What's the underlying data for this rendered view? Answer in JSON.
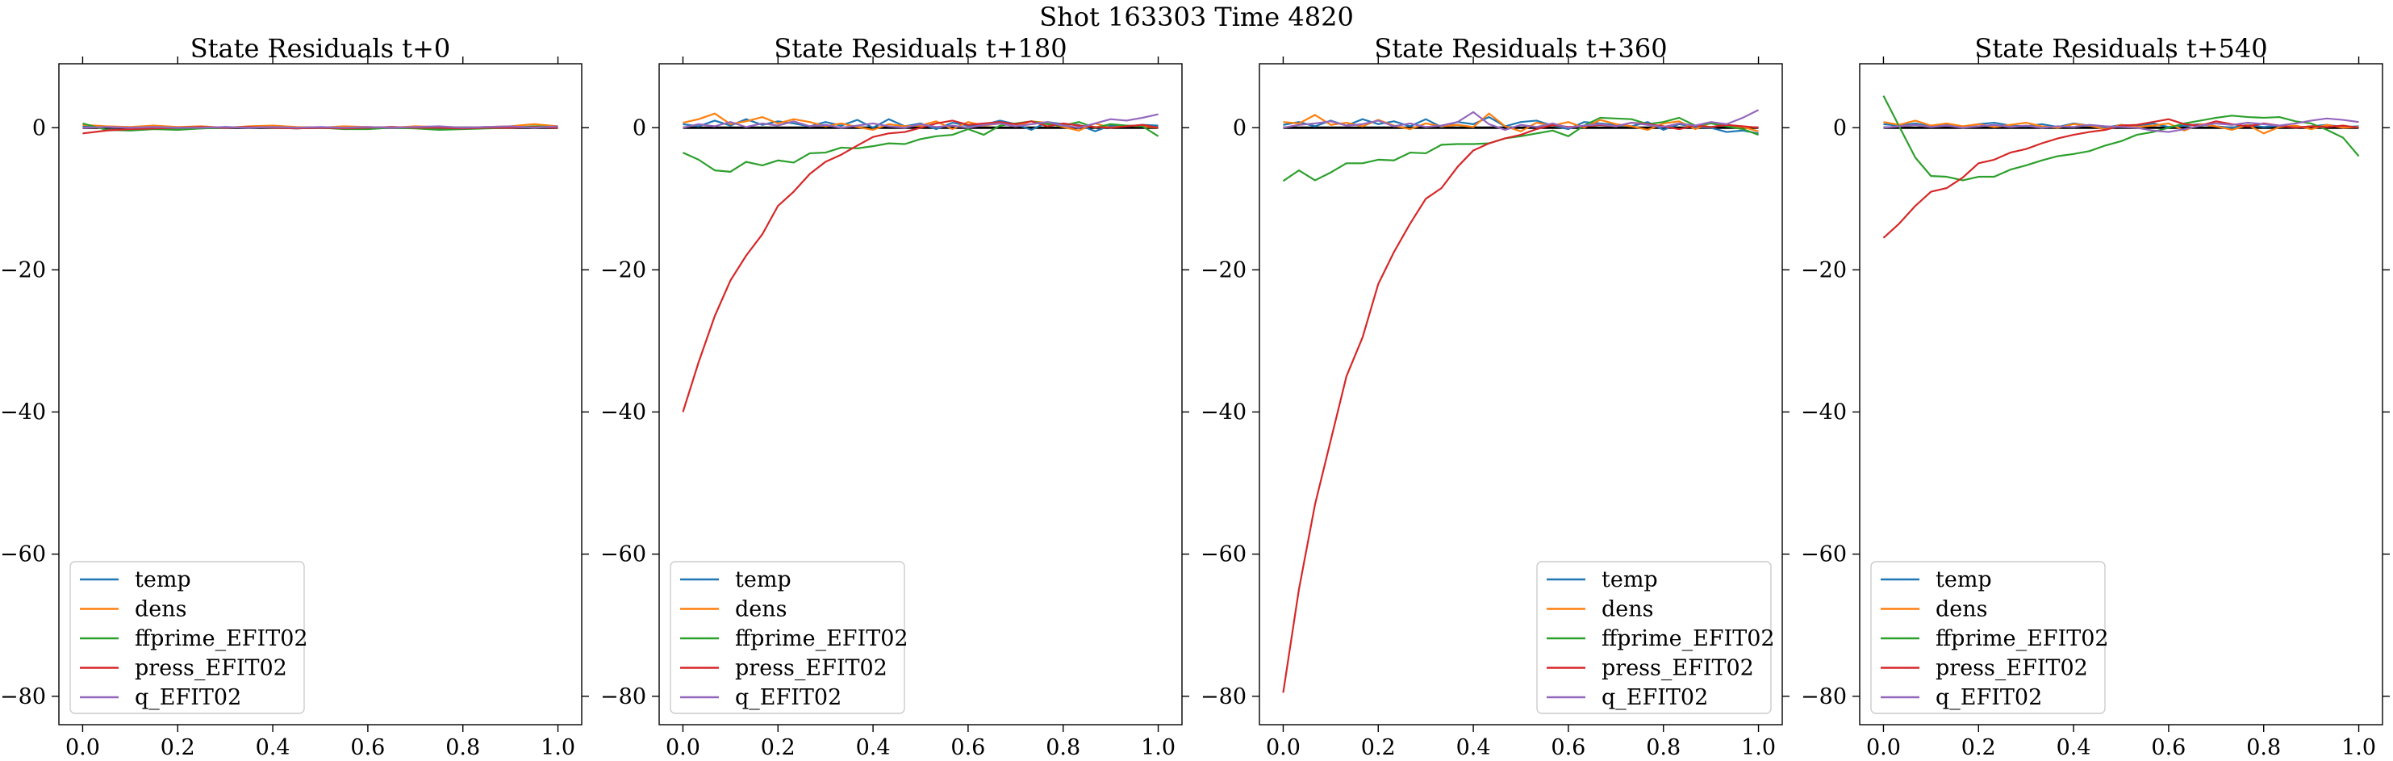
{
  "suptitle": "Shot 163303   Time 4820",
  "series_colors": {
    "temp": "#1f77b4",
    "dens": "#ff7f0e",
    "ffprime_EFIT02": "#2ca02c",
    "press_EFIT02": "#d62728",
    "q_EFIT02": "#9467bd"
  },
  "chart_data": [
    {
      "type": "line",
      "title": "State Residuals t+0",
      "xlim": [
        -0.05,
        1.05
      ],
      "ylim": [
        -84,
        9
      ],
      "x_ticks": [
        0.0,
        0.2,
        0.4,
        0.6,
        0.8,
        1.0
      ],
      "x_tick_labels": [
        "0.0",
        "0.2",
        "0.4",
        "0.6",
        "0.8",
        "1.0"
      ],
      "y_ticks": [
        -80,
        -60,
        -40,
        -20,
        0
      ],
      "y_tick_labels": [
        "−80",
        "−60",
        "−40",
        "−20",
        "0"
      ],
      "legend_loc": "lower-left",
      "x": [
        0.0,
        0.05,
        0.1,
        0.15,
        0.2,
        0.25,
        0.3,
        0.35,
        0.4,
        0.45,
        0.5,
        0.55,
        0.6,
        0.65,
        0.7,
        0.75,
        0.8,
        0.85,
        0.9,
        0.95,
        1.0
      ],
      "series": [
        {
          "name": "temp",
          "values": [
            0.2,
            0.1,
            0.0,
            0.1,
            0.0,
            -0.1,
            0.1,
            0.0,
            0.1,
            0.0,
            0.0,
            -0.1,
            0.0,
            0.1,
            0.0,
            -0.1,
            0.0,
            0.1,
            0.0,
            0.1,
            0.1
          ]
        },
        {
          "name": "dens",
          "values": [
            0.4,
            0.2,
            0.1,
            0.3,
            0.1,
            0.2,
            0.0,
            0.2,
            0.3,
            0.1,
            0.0,
            0.2,
            0.1,
            0.0,
            0.2,
            0.1,
            0.0,
            0.1,
            0.2,
            0.5,
            0.2
          ]
        },
        {
          "name": "ffprime_EFIT02",
          "values": [
            0.6,
            -0.3,
            -0.4,
            -0.2,
            -0.3,
            -0.1,
            0.0,
            0.1,
            0.0,
            -0.1,
            0.0,
            -0.2,
            -0.2,
            0.0,
            -0.1,
            -0.3,
            -0.2,
            -0.1,
            0.0,
            0.2,
            0.1
          ]
        },
        {
          "name": "press_EFIT02",
          "values": [
            -0.8,
            -0.4,
            -0.2,
            -0.1,
            0.0,
            0.1,
            0.0,
            0.1,
            0.0,
            -0.1,
            0.0,
            -0.1,
            0.0,
            0.1,
            0.0,
            0.0,
            -0.1,
            0.0,
            0.0,
            0.1,
            0.0
          ]
        },
        {
          "name": "q_EFIT02",
          "values": [
            0.0,
            0.1,
            0.0,
            0.1,
            0.0,
            0.0,
            0.1,
            0.0,
            0.1,
            0.0,
            0.1,
            0.0,
            0.1,
            0.0,
            0.1,
            0.2,
            0.0,
            0.1,
            0.2,
            0.0,
            0.2
          ]
        }
      ]
    },
    {
      "type": "line",
      "title": "State Residuals t+180",
      "xlim": [
        -0.05,
        1.05
      ],
      "ylim": [
        -84,
        9
      ],
      "x_ticks": [
        0.0,
        0.2,
        0.4,
        0.6,
        0.8,
        1.0
      ],
      "x_tick_labels": [
        "0.0",
        "0.2",
        "0.4",
        "0.6",
        "0.8",
        "1.0"
      ],
      "y_ticks": [
        -80,
        -60,
        -40,
        -20,
        0
      ],
      "y_tick_labels": [
        "−80",
        "−60",
        "−40",
        "−20",
        "0"
      ],
      "legend_loc": "lower-left",
      "x": [
        0.0,
        0.033,
        0.067,
        0.1,
        0.133,
        0.167,
        0.2,
        0.233,
        0.267,
        0.3,
        0.333,
        0.367,
        0.4,
        0.433,
        0.467,
        0.5,
        0.533,
        0.567,
        0.6,
        0.633,
        0.667,
        0.7,
        0.733,
        0.767,
        0.8,
        0.833,
        0.867,
        0.9,
        0.933,
        0.967,
        1.0
      ],
      "series": [
        {
          "name": "temp",
          "values": [
            0.5,
            0.2,
            1.0,
            0.3,
            1.2,
            0.4,
            0.9,
            0.6,
            0.2,
            0.8,
            0.3,
            1.1,
            0.0,
            1.2,
            0.2,
            0.6,
            -0.2,
            0.7,
            0.3,
            0.4,
            1.0,
            0.5,
            -0.3,
            0.8,
            0.5,
            0.4,
            -0.5,
            0.3,
            0.2,
            0.4,
            0.3
          ]
        },
        {
          "name": "dens",
          "values": [
            0.7,
            1.2,
            2.0,
            0.5,
            0.9,
            1.5,
            0.6,
            1.2,
            0.8,
            0.2,
            0.6,
            0.1,
            -0.3,
            0.5,
            0.2,
            0.3,
            0.9,
            -0.2,
            0.8,
            0.3,
            0.6,
            0.2,
            0.9,
            0.7,
            0.1,
            -0.4,
            0.6,
            0.0,
            0.3,
            0.2,
            0.0
          ]
        },
        {
          "name": "ffprime_EFIT02",
          "values": [
            -3.5,
            -4.5,
            -6.0,
            -6.2,
            -4.8,
            -5.3,
            -4.6,
            -4.9,
            -3.6,
            -3.5,
            -2.8,
            -2.9,
            -2.6,
            -2.2,
            -2.3,
            -1.6,
            -1.2,
            -1.0,
            -0.2,
            -1.0,
            0.3,
            0.6,
            0.9,
            0.5,
            0.3,
            0.8,
            0.0,
            0.5,
            0.3,
            0.2,
            -1.2
          ]
        },
        {
          "name": "press_EFIT02",
          "values": [
            -40.0,
            -33.0,
            -26.5,
            -21.5,
            -18.0,
            -15.0,
            -11.0,
            -9.0,
            -6.5,
            -4.8,
            -3.8,
            -2.5,
            -1.3,
            -0.8,
            -0.6,
            0.0,
            0.6,
            1.0,
            0.4,
            0.6,
            0.8,
            0.5,
            0.9,
            0.2,
            0.6,
            0.3,
            0.1,
            0.0,
            0.2,
            0.4,
            0.0
          ]
        },
        {
          "name": "q_EFIT02",
          "values": [
            0.0,
            0.5,
            0.2,
            0.8,
            0.1,
            0.6,
            0.3,
            0.9,
            0.2,
            0.4,
            0.0,
            0.3,
            0.6,
            0.2,
            0.0,
            0.5,
            0.1,
            0.3,
            0.0,
            0.4,
            0.6,
            0.2,
            0.5,
            0.8,
            0.3,
            0.0,
            0.6,
            1.2,
            1.0,
            1.4,
            1.9
          ]
        }
      ]
    },
    {
      "type": "line",
      "title": "State Residuals t+360",
      "xlim": [
        -0.05,
        1.05
      ],
      "ylim": [
        -84,
        9
      ],
      "x_ticks": [
        0.0,
        0.2,
        0.4,
        0.6,
        0.8,
        1.0
      ],
      "x_tick_labels": [
        "0.0",
        "0.2",
        "0.4",
        "0.6",
        "0.8",
        "1.0"
      ],
      "y_ticks": [
        -80,
        -60,
        -40,
        -20,
        0
      ],
      "y_tick_labels": [
        "−80",
        "−60",
        "−40",
        "−20",
        "0"
      ],
      "legend_loc": "lower-right",
      "x": [
        0.0,
        0.033,
        0.067,
        0.1,
        0.133,
        0.167,
        0.2,
        0.233,
        0.267,
        0.3,
        0.333,
        0.367,
        0.4,
        0.433,
        0.467,
        0.5,
        0.533,
        0.567,
        0.6,
        0.633,
        0.667,
        0.7,
        0.733,
        0.767,
        0.8,
        0.833,
        0.867,
        0.9,
        0.933,
        0.967,
        1.0
      ],
      "series": [
        {
          "name": "temp",
          "values": [
            0.4,
            0.8,
            0.2,
            1.0,
            0.3,
            1.2,
            0.5,
            0.9,
            0.2,
            1.2,
            0.1,
            0.8,
            0.5,
            1.5,
            0.2,
            0.8,
            1.0,
            0.3,
            -0.2,
            0.8,
            0.6,
            0.4,
            0.2,
            0.8,
            -0.3,
            0.5,
            0.1,
            0.0,
            -0.6,
            -0.4,
            -0.8
          ]
        },
        {
          "name": "dens",
          "values": [
            0.8,
            0.6,
            1.8,
            0.4,
            0.7,
            0.2,
            1.1,
            0.3,
            -0.2,
            0.6,
            0.2,
            0.4,
            0.1,
            2.0,
            0.2,
            -0.5,
            0.7,
            0.3,
            0.8,
            0.0,
            1.1,
            0.5,
            0.2,
            -0.3,
            0.6,
            0.9,
            -0.2,
            0.7,
            0.3,
            0.1,
            -0.5
          ]
        },
        {
          "name": "ffprime_EFIT02",
          "values": [
            -7.5,
            -6.0,
            -7.4,
            -6.3,
            -5.0,
            -5.0,
            -4.5,
            -4.6,
            -3.5,
            -3.6,
            -2.4,
            -2.3,
            -2.3,
            -2.2,
            -1.5,
            -1.2,
            -0.8,
            -0.4,
            -1.2,
            0.3,
            1.4,
            1.3,
            1.2,
            0.5,
            0.8,
            1.4,
            0.3,
            0.6,
            0.2,
            -0.2,
            -1.0
          ]
        },
        {
          "name": "press_EFIT02",
          "values": [
            -79.5,
            -65.0,
            -53.0,
            -44.0,
            -35.0,
            -29.5,
            -22.0,
            -17.5,
            -13.5,
            -10.0,
            -8.5,
            -5.5,
            -3.2,
            -2.2,
            -1.5,
            -1.0,
            -0.2,
            0.4,
            0.1,
            0.2,
            0.4,
            0.2,
            0.7,
            0.5,
            0.2,
            -0.2,
            0.3,
            0.1,
            0.4,
            0.2,
            0.0
          ]
        },
        {
          "name": "q_EFIT02",
          "values": [
            0.0,
            0.4,
            0.6,
            0.9,
            0.3,
            0.5,
            1.0,
            0.2,
            0.6,
            0.1,
            0.3,
            0.8,
            2.2,
            0.5,
            -0.3,
            0.4,
            0.1,
            0.6,
            0.0,
            0.3,
            0.5,
            0.2,
            0.7,
            0.4,
            0.1,
            0.6,
            0.3,
            0.8,
            0.5,
            1.4,
            2.5
          ]
        }
      ]
    },
    {
      "type": "line",
      "title": "State Residuals t+540",
      "xlim": [
        -0.05,
        1.05
      ],
      "ylim": [
        -84,
        9
      ],
      "x_ticks": [
        0.0,
        0.2,
        0.4,
        0.6,
        0.8,
        1.0
      ],
      "x_tick_labels": [
        "0.0",
        "0.2",
        "0.4",
        "0.6",
        "0.8",
        "1.0"
      ],
      "y_ticks": [
        -80,
        -60,
        -40,
        -20,
        0
      ],
      "y_tick_labels": [
        "−80",
        "−60",
        "−40",
        "−20",
        "0"
      ],
      "legend_loc": "lower-left",
      "x": [
        0.0,
        0.033,
        0.067,
        0.1,
        0.133,
        0.167,
        0.2,
        0.233,
        0.267,
        0.3,
        0.333,
        0.367,
        0.4,
        0.433,
        0.467,
        0.5,
        0.533,
        0.567,
        0.6,
        0.633,
        0.667,
        0.7,
        0.733,
        0.767,
        0.8,
        0.833,
        0.867,
        0.9,
        0.933,
        0.967,
        1.0
      ],
      "series": [
        {
          "name": "temp",
          "values": [
            0.5,
            0.3,
            0.6,
            0.2,
            0.4,
            0.1,
            0.5,
            0.7,
            0.3,
            0.2,
            0.5,
            0.1,
            0.6,
            0.3,
            0.0,
            0.4,
            0.2,
            0.6,
            0.1,
            0.3,
            0.5,
            0.2,
            0.0,
            0.4,
            0.1,
            0.3,
            0.0,
            0.2,
            0.4,
            0.1,
            0.2
          ]
        },
        {
          "name": "dens",
          "values": [
            0.8,
            0.4,
            1.0,
            0.3,
            0.6,
            0.2,
            0.5,
            0.1,
            0.4,
            0.7,
            0.2,
            0.0,
            0.5,
            0.3,
            -0.2,
            0.4,
            0.1,
            0.3,
            0.6,
            -0.4,
            0.5,
            0.2,
            -0.3,
            0.4,
            -0.8,
            0.1,
            0.3,
            -0.2,
            0.4,
            0.0,
            0.1
          ]
        },
        {
          "name": "ffprime_EFIT02",
          "values": [
            4.5,
            0.2,
            -4.2,
            -6.8,
            -6.9,
            -7.4,
            -6.9,
            -6.9,
            -5.9,
            -5.3,
            -4.6,
            -4.0,
            -3.7,
            -3.3,
            -2.5,
            -1.9,
            -1.0,
            -0.6,
            0.0,
            0.6,
            1.0,
            1.4,
            1.7,
            1.5,
            1.4,
            1.5,
            0.9,
            0.6,
            -0.3,
            -1.4,
            -4.0
          ]
        },
        {
          "name": "press_EFIT02",
          "values": [
            -15.5,
            -13.5,
            -11.0,
            -9.0,
            -8.5,
            -7.0,
            -5.0,
            -4.5,
            -3.5,
            -3.0,
            -2.2,
            -1.5,
            -1.0,
            -0.6,
            -0.3,
            0.3,
            0.4,
            0.8,
            1.2,
            0.5,
            0.3,
            0.9,
            0.5,
            0.2,
            0.6,
            0.3,
            0.0,
            0.2,
            0.1,
            0.3,
            0.0
          ]
        },
        {
          "name": "q_EFIT02",
          "values": [
            0.0,
            0.2,
            0.4,
            0.1,
            0.3,
            0.0,
            0.2,
            0.4,
            0.1,
            0.3,
            0.0,
            0.2,
            0.1,
            0.4,
            0.2,
            0.1,
            0.0,
            -0.4,
            -0.6,
            -0.2,
            0.3,
            0.6,
            0.4,
            0.7,
            0.5,
            0.3,
            0.6,
            1.0,
            1.3,
            1.1,
            0.8
          ]
        }
      ]
    }
  ]
}
